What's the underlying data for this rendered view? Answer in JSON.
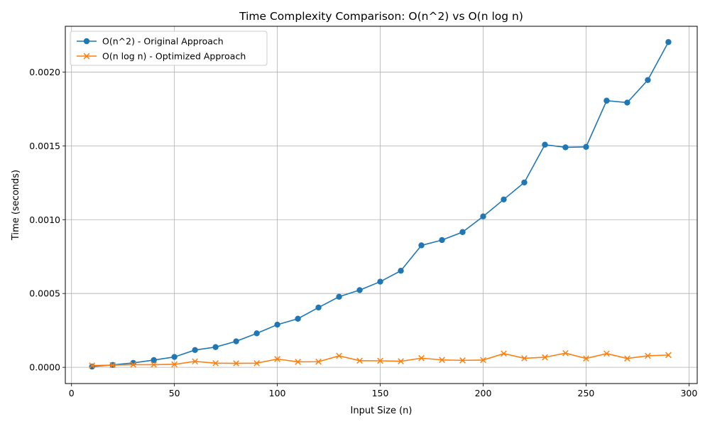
{
  "chart_data": {
    "type": "line",
    "title": "Time Complexity Comparison: O(n^2) vs O(n log n)",
    "xlabel": "Input Size (n)",
    "ylabel": "Time (seconds)",
    "xlim": [
      -3,
      304
    ],
    "ylim": [
      -0.00011,
      0.00231
    ],
    "x_ticks": [
      0,
      50,
      100,
      150,
      200,
      250,
      300
    ],
    "x_tick_labels": [
      "0",
      "50",
      "100",
      "150",
      "200",
      "250",
      "300"
    ],
    "y_ticks": [
      0,
      0.0005,
      0.001,
      0.0015,
      0.002
    ],
    "y_tick_labels": [
      "0.0000",
      "0.0005",
      "0.0010",
      "0.0015",
      "0.0020"
    ],
    "grid": true,
    "legend_position": "top-left",
    "x": [
      10,
      20,
      30,
      40,
      50,
      60,
      70,
      80,
      90,
      100,
      110,
      120,
      130,
      140,
      150,
      160,
      170,
      180,
      190,
      200,
      210,
      220,
      230,
      240,
      250,
      260,
      270,
      280,
      290
    ],
    "series": [
      {
        "name": "O(n^2) - Original Approach",
        "color": "#1f77b4",
        "marker": "circle",
        "values": [
          5e-06,
          1.6e-05,
          3e-05,
          4.9e-05,
          7e-05,
          0.000117,
          0.000137,
          0.000176,
          0.00023,
          0.000289,
          0.000329,
          0.000405,
          0.000478,
          0.000523,
          0.00058,
          0.000654,
          0.000826,
          0.000862,
          0.000916,
          0.001022,
          0.001137,
          0.001252,
          0.001508,
          0.00149,
          0.001493,
          0.001806,
          0.001793,
          0.001946,
          0.002203
        ]
      },
      {
        "name": "O(n log n) - Optimized Approach",
        "color": "#ff7f0e",
        "marker": "x",
        "values": [
          1.2e-05,
          1.5e-05,
          1.8e-05,
          1.8e-05,
          2e-05,
          4e-05,
          2.8e-05,
          2.7e-05,
          2.8e-05,
          5.6e-05,
          3.7e-05,
          3.8e-05,
          7.8e-05,
          4.5e-05,
          4.4e-05,
          4.1e-05,
          6.2e-05,
          5e-05,
          4.7e-05,
          4.9e-05,
          9.3e-05,
          6.1e-05,
          6.8e-05,
          9.6e-05,
          6e-05,
          9.3e-05,
          6e-05,
          7.8e-05,
          8.3e-05
        ]
      }
    ]
  }
}
